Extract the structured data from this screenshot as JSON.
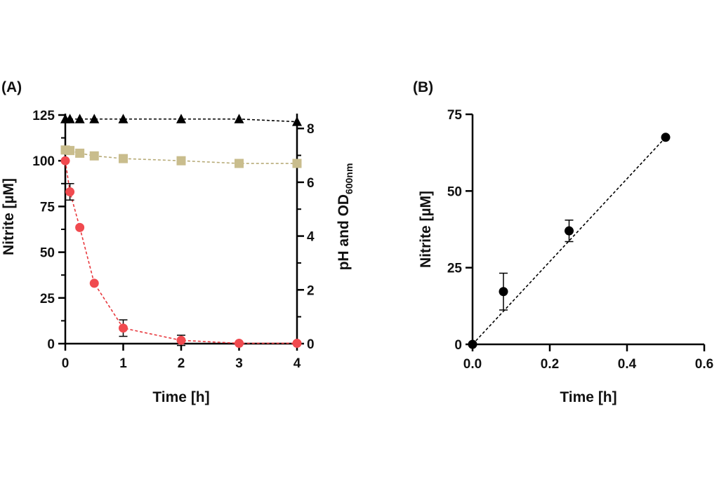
{
  "chart_data": [
    {
      "panel": "(A)",
      "type": "scatter",
      "xlabel": "Time [h]",
      "ylabel": "Nitrite [µM]",
      "ylabel2_main": "pH and OD",
      "ylabel2_sub": "600nm",
      "xlim": [
        0,
        4
      ],
      "ylim": [
        0,
        125
      ],
      "y2lim": [
        0,
        8.5
      ],
      "x_ticks": [
        0,
        1,
        2,
        3,
        4
      ],
      "x_tick_labels": [
        "0",
        "1",
        "2",
        "3",
        "4"
      ],
      "y_ticks": [
        0,
        25,
        50,
        75,
        100,
        125
      ],
      "y_tick_labels": [
        "0",
        "25",
        "50",
        "75",
        "100",
        "125"
      ],
      "y2_ticks": [
        0,
        2,
        4,
        6,
        8
      ],
      "y2_tick_labels": [
        "0",
        "2",
        "4",
        "6",
        "8"
      ],
      "series": [
        {
          "name": "Nitrite",
          "axis": "left",
          "marker": "circle",
          "color": "#f04a4f",
          "line_color": "#e8383d",
          "x": [
            0,
            0.08,
            0.25,
            0.5,
            1,
            2,
            3,
            4
          ],
          "y": [
            100,
            83,
            63.5,
            33,
            8.5,
            1.8,
            0.2,
            0.2
          ],
          "err": [
            0,
            4.5,
            0,
            0,
            4.5,
            2.8,
            0,
            0
          ]
        },
        {
          "name": "pH",
          "axis": "right",
          "marker": "triangle",
          "color": "#000000",
          "line_color": "#000000",
          "x": [
            0,
            0.08,
            0.25,
            0.5,
            1,
            2,
            3,
            4
          ],
          "y": [
            8.35,
            8.35,
            8.35,
            8.35,
            8.35,
            8.35,
            8.35,
            8.25
          ],
          "err": [
            0,
            0,
            0,
            0,
            0,
            0,
            0,
            0
          ]
        },
        {
          "name": "OD600nm",
          "axis": "right",
          "marker": "square",
          "color": "#c9bd8d",
          "line_color": "#b7ab78",
          "x": [
            0,
            0.08,
            0.25,
            0.5,
            1,
            2,
            3,
            4
          ],
          "y": [
            7.2,
            7.18,
            7.08,
            6.98,
            6.88,
            6.8,
            6.7,
            6.7
          ],
          "err": [
            0,
            0,
            0,
            0,
            0,
            0,
            0,
            0
          ]
        }
      ]
    },
    {
      "panel": "(B)",
      "type": "scatter",
      "xlabel": "Time [h]",
      "ylabel": "Nitrite [µM]",
      "xlim": [
        0,
        0.6
      ],
      "ylim": [
        0,
        75
      ],
      "x_ticks": [
        0,
        0.2,
        0.4,
        0.6
      ],
      "x_tick_labels": [
        "0.0",
        "0.2",
        "0.4",
        "0.6"
      ],
      "y_ticks": [
        0,
        25,
        50,
        75
      ],
      "y_tick_labels": [
        "0",
        "25",
        "50",
        "75"
      ],
      "series": [
        {
          "name": "Nitrite",
          "marker": "circle",
          "color": "#000000",
          "x": [
            0,
            0.08,
            0.25,
            0.5
          ],
          "y": [
            0,
            17.2,
            37,
            67.5
          ],
          "err": [
            0,
            6,
            3.5,
            0
          ]
        }
      ],
      "fit_line": {
        "x": [
          0,
          0.5
        ],
        "y": [
          0,
          67.5
        ]
      }
    }
  ]
}
